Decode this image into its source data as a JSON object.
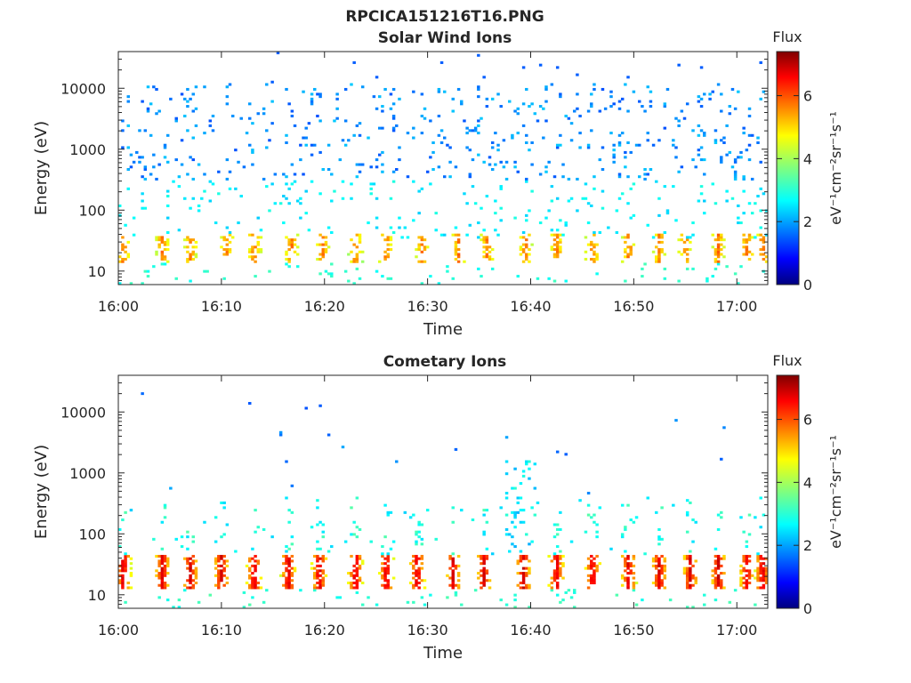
{
  "figure_title": "RPCICA151216T16.PNG",
  "colorbar_label": "Flux",
  "colorbar_unit": "eV⁻¹cm⁻²sr⁻¹s⁻¹",
  "colormap": [
    "#00007f",
    "#0000ff",
    "#007fff",
    "#00ffff",
    "#7fff7f",
    "#ffff00",
    "#ff7f00",
    "#ff0000",
    "#7f0000"
  ],
  "chart_data": [
    {
      "type": "heatmap",
      "title": "Solar Wind Ions",
      "xlabel": "Time",
      "ylabel": "Energy (eV)",
      "x_ticks": [
        "16:00",
        "16:10",
        "16:20",
        "16:30",
        "16:40",
        "16:50",
        "17:00"
      ],
      "x_range_minutes": [
        0,
        63
      ],
      "y_scale": "log",
      "y_ticks": [
        10,
        100,
        1000,
        10000
      ],
      "y_ticklabels": [
        "10",
        "100",
        "1000",
        "10000"
      ],
      "y_range": [
        6,
        40000
      ],
      "colorbar": {
        "label": "Flux",
        "range": [
          0,
          7.4
        ],
        "ticks": [
          0,
          2,
          4,
          6
        ]
      },
      "features": {
        "description_levels": "sparse speckle flux ~1.5-2.2 above 300 eV; sporadic 2.5-3 between 30-300 eV; periodic bands 3.5-5.5 at 15-40 eV roughly every 3.5 min",
        "band_times_minutes": [
          0.5,
          4.3,
          7.0,
          10.5,
          13.2,
          16.8,
          19.8,
          23.0,
          26.0,
          29.5,
          33.0,
          35.8,
          39.5,
          42.5,
          46.0,
          49.5,
          52.5,
          55.0,
          58.2,
          61.0,
          62.5
        ]
      }
    },
    {
      "type": "heatmap",
      "title": "Cometary Ions",
      "xlabel": "Time",
      "ylabel": "Energy (eV)",
      "x_ticks": [
        "16:00",
        "16:10",
        "16:20",
        "16:30",
        "16:40",
        "16:50",
        "17:00"
      ],
      "x_range_minutes": [
        0,
        63
      ],
      "y_scale": "log",
      "y_ticks": [
        10,
        100,
        1000,
        10000
      ],
      "y_ticklabels": [
        "10",
        "100",
        "1000",
        "10000"
      ],
      "y_range": [
        6,
        40000
      ],
      "colorbar": {
        "label": "Flux",
        "range": [
          0,
          7.4
        ],
        "ticks": [
          0,
          2,
          4,
          6
        ]
      },
      "features": {
        "description_levels": "strong periodic bands 4-6.8 at 12-45 eV; sporadic tails up to ~2000 eV near 16:38-16:40; isolated points up to ~25000 eV",
        "band_times_minutes": [
          0.5,
          4.3,
          7.0,
          10.0,
          13.2,
          16.5,
          19.5,
          23.0,
          26.0,
          29.0,
          32.5,
          35.5,
          39.3,
          42.5,
          46.0,
          49.5,
          52.5,
          55.5,
          58.2,
          61.0,
          62.5
        ]
      }
    }
  ]
}
